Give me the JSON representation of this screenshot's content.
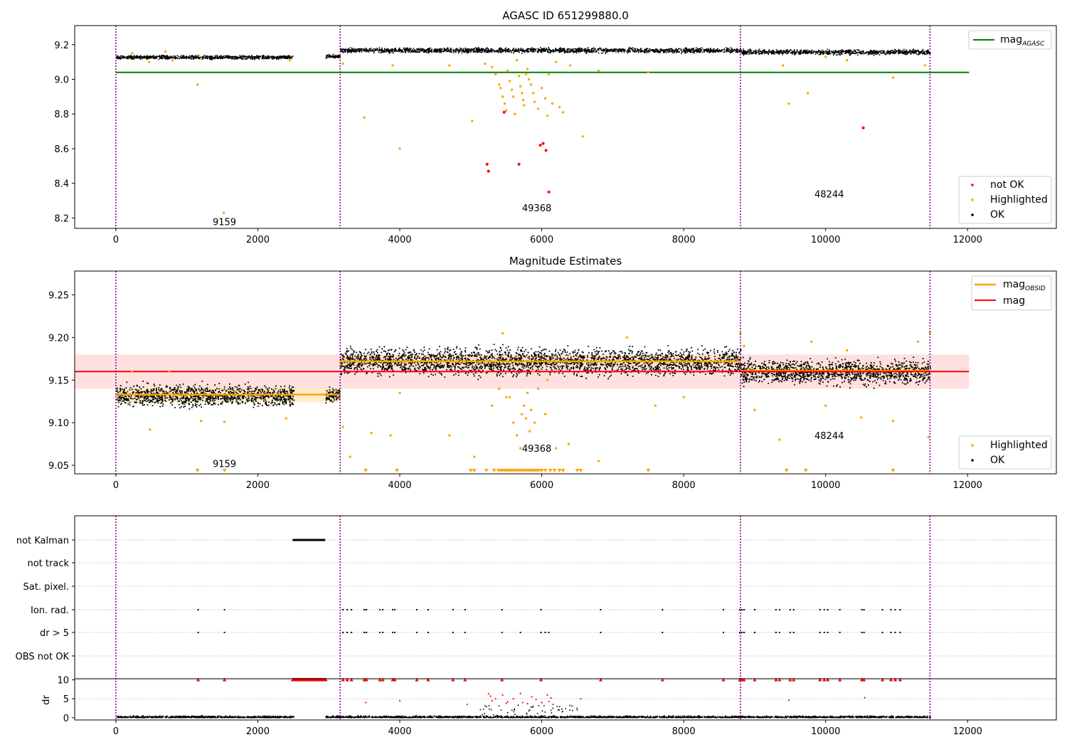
{
  "chart_data": [
    {
      "type": "scatter",
      "title": "AGASC ID 651299880.0",
      "xlim": [
        -580,
        13250
      ],
      "ylim": [
        8.14,
        9.31
      ],
      "xticks": [
        0,
        2000,
        4000,
        6000,
        8000,
        10000,
        12000
      ],
      "yticks": [
        8.2,
        8.4,
        8.6,
        8.8,
        9.0,
        9.2
      ],
      "vlines": [
        0,
        3160,
        8800,
        11470
      ],
      "obsid_labels": [
        {
          "text": "9159",
          "x": 1580,
          "y": 8.18
        },
        {
          "text": "49368",
          "x": 5980,
          "y": 8.26
        },
        {
          "text": "48244",
          "x": 10100,
          "y": 8.34
        }
      ],
      "hline": {
        "name": "mag",
        "subscript": "AGASC",
        "y": 9.04,
        "x0": 0,
        "x1": 12020,
        "color": "#008000"
      },
      "legend_lines": [
        {
          "name": "mag",
          "subscript": "AGASC",
          "color": "#008000"
        }
      ],
      "legend_points": [
        {
          "name": "not OK",
          "color": "#ff0000"
        },
        {
          "name": "Highlighted",
          "color": "#ffa500"
        },
        {
          "name": "OK",
          "color": "#000000"
        }
      ],
      "ok_bands": [
        {
          "x0": 0,
          "x1": 2500,
          "y0": 9.115,
          "y1": 9.145
        },
        {
          "x0": 2950,
          "x1": 3150,
          "y0": 9.12,
          "y1": 9.15
        },
        {
          "x0": 3160,
          "x1": 8800,
          "y0": 9.15,
          "y1": 9.19
        },
        {
          "x0": 8800,
          "x1": 11470,
          "y0": 9.14,
          "y1": 9.18
        }
      ],
      "highlighted": [
        [
          230,
          9.15
        ],
        [
          470,
          9.1
        ],
        [
          700,
          9.16
        ],
        [
          800,
          9.11
        ],
        [
          1150,
          8.97
        ],
        [
          1200,
          9.12
        ],
        [
          1520,
          8.23
        ],
        [
          2450,
          9.11
        ],
        [
          3200,
          9.09
        ],
        [
          3500,
          8.78
        ],
        [
          3900,
          9.08
        ],
        [
          4000,
          8.6
        ],
        [
          4700,
          9.08
        ],
        [
          5020,
          8.76
        ],
        [
          5200,
          9.09
        ],
        [
          5300,
          9.07
        ],
        [
          5350,
          9.03
        ],
        [
          5400,
          8.97
        ],
        [
          5420,
          8.95
        ],
        [
          5450,
          8.9
        ],
        [
          5480,
          8.86
        ],
        [
          5500,
          8.82
        ],
        [
          5520,
          9.05
        ],
        [
          5550,
          8.99
        ],
        [
          5580,
          8.94
        ],
        [
          5600,
          8.9
        ],
        [
          5620,
          8.8
        ],
        [
          5650,
          9.11
        ],
        [
          5680,
          9.02
        ],
        [
          5700,
          8.96
        ],
        [
          5720,
          8.92
        ],
        [
          5740,
          8.88
        ],
        [
          5750,
          8.85
        ],
        [
          5780,
          9.03
        ],
        [
          5800,
          9.06
        ],
        [
          5820,
          9.0
        ],
        [
          5850,
          8.97
        ],
        [
          5880,
          8.92
        ],
        [
          5900,
          8.87
        ],
        [
          5950,
          8.83
        ],
        [
          6000,
          8.95
        ],
        [
          6050,
          8.89
        ],
        [
          6080,
          8.79
        ],
        [
          6100,
          9.03
        ],
        [
          6150,
          8.86
        ],
        [
          6200,
          9.1
        ],
        [
          6250,
          8.84
        ],
        [
          6300,
          8.81
        ],
        [
          6400,
          9.08
        ],
        [
          6580,
          8.67
        ],
        [
          6800,
          9.05
        ],
        [
          7500,
          9.04
        ],
        [
          9400,
          9.08
        ],
        [
          9480,
          8.86
        ],
        [
          9750,
          8.92
        ],
        [
          10000,
          9.13
        ],
        [
          10300,
          9.11
        ],
        [
          10950,
          9.01
        ],
        [
          11400,
          9.08
        ]
      ],
      "not_ok": [
        [
          5470,
          8.81
        ],
        [
          5230,
          8.51
        ],
        [
          5250,
          8.47
        ],
        [
          5680,
          8.51
        ],
        [
          5980,
          8.62
        ],
        [
          6020,
          8.63
        ],
        [
          6060,
          8.59
        ],
        [
          6100,
          8.35
        ],
        [
          10530,
          8.72
        ]
      ]
    },
    {
      "type": "scatter",
      "title": "Magnitude Estimates",
      "xlim": [
        -580,
        13250
      ],
      "ylim": [
        9.04,
        9.278
      ],
      "xticks": [
        0,
        2000,
        4000,
        6000,
        8000,
        10000,
        12000
      ],
      "yticks": [
        9.05,
        9.1,
        9.15,
        9.2,
        9.25
      ],
      "vlines": [
        0,
        3160,
        8800,
        11470
      ],
      "obsid_labels": [
        {
          "text": "9159",
          "x": 1580,
          "y": 9.052
        },
        {
          "text": "49368",
          "x": 5980,
          "y": 9.07
        },
        {
          "text": "48244",
          "x": 10100,
          "y": 9.085
        }
      ],
      "mag": {
        "name": "mag",
        "y": 9.16,
        "band": [
          9.14,
          9.18
        ],
        "x0": -580,
        "x1": 12020,
        "color": "#ff0000"
      },
      "mag_obsid": [
        {
          "x0": 0,
          "x1": 3160,
          "y": 9.133,
          "band": [
            9.124,
            9.142
          ]
        },
        {
          "x0": 3160,
          "x1": 8800,
          "y": 9.172,
          "band": [
            9.166,
            9.178
          ]
        },
        {
          "x0": 8800,
          "x1": 11470,
          "y": 9.161,
          "band": [
            9.156,
            9.166
          ]
        }
      ],
      "legend_lines": [
        {
          "name": "mag",
          "subscript": "OBSID",
          "color": "#ffa500"
        },
        {
          "name": "mag",
          "subscript": "",
          "color": "#ff0000"
        }
      ],
      "legend_points": [
        {
          "name": "Highlighted",
          "color": "#ffa500"
        },
        {
          "name": "OK",
          "color": "#000000"
        }
      ],
      "ok_bands": [
        {
          "x0": 0,
          "x1": 2500,
          "y0": 9.115,
          "y1": 9.15
        },
        {
          "x0": 2950,
          "x1": 3150,
          "y0": 9.12,
          "y1": 9.145
        },
        {
          "x0": 3160,
          "x1": 8800,
          "y0": 9.15,
          "y1": 9.195
        },
        {
          "x0": 8800,
          "x1": 11470,
          "y0": 9.14,
          "y1": 9.18
        }
      ],
      "highlighted": [
        [
          230,
          9.16
        ],
        [
          480,
          9.092
        ],
        [
          750,
          9.16
        ],
        [
          1200,
          9.102
        ],
        [
          1530,
          9.101
        ],
        [
          2400,
          9.105
        ],
        [
          3200,
          9.095
        ],
        [
          3300,
          9.06
        ],
        [
          3600,
          9.088
        ],
        [
          3870,
          9.085
        ],
        [
          4000,
          9.135
        ],
        [
          4700,
          9.085
        ],
        [
          5050,
          9.06
        ],
        [
          5200,
          9.16
        ],
        [
          5300,
          9.12
        ],
        [
          5400,
          9.14
        ],
        [
          5450,
          9.205
        ],
        [
          5500,
          9.13
        ],
        [
          5550,
          9.13
        ],
        [
          5600,
          9.1
        ],
        [
          5650,
          9.085
        ],
        [
          5700,
          9.07
        ],
        [
          5720,
          9.11
        ],
        [
          5750,
          9.12
        ],
        [
          5780,
          9.105
        ],
        [
          5800,
          9.135
        ],
        [
          5830,
          9.09
        ],
        [
          5850,
          9.115
        ],
        [
          5880,
          9.16
        ],
        [
          5900,
          9.1
        ],
        [
          5950,
          9.14
        ],
        [
          6050,
          9.11
        ],
        [
          6080,
          9.15
        ],
        [
          6200,
          9.07
        ],
        [
          6380,
          9.075
        ],
        [
          6800,
          9.055
        ],
        [
          7200,
          9.2
        ],
        [
          7600,
          9.12
        ],
        [
          8000,
          9.13
        ],
        [
          8800,
          9.205
        ],
        [
          8850,
          9.19
        ],
        [
          9000,
          9.115
        ],
        [
          9350,
          9.08
        ],
        [
          9800,
          9.195
        ],
        [
          10000,
          9.12
        ],
        [
          10300,
          9.185
        ],
        [
          10500,
          9.106
        ],
        [
          10950,
          9.102
        ],
        [
          11300,
          9.195
        ],
        [
          11450,
          9.083
        ],
        [
          11470,
          9.206
        ]
      ],
      "lower_arrows": [
        1150,
        1530,
        3520,
        3960,
        5000,
        5050,
        5220,
        5330,
        5390,
        5420,
        5450,
        5480,
        5510,
        5540,
        5570,
        5600,
        5630,
        5660,
        5690,
        5720,
        5750,
        5780,
        5810,
        5840,
        5870,
        5900,
        5930,
        5960,
        6000,
        6050,
        6120,
        6180,
        6250,
        6300,
        6500,
        6550,
        7500,
        9450,
        9720,
        10950
      ]
    },
    {
      "type": "scatter",
      "title": "",
      "xlim": [
        -580,
        13250
      ],
      "xticks": [
        0,
        2000,
        4000,
        6000,
        8000,
        10000,
        12000
      ],
      "vlines": [
        0,
        3160,
        8800,
        11470
      ],
      "flag_rows": [
        "not Kalman",
        "not track",
        "Sat. pixel.",
        "Ion. rad.",
        "dr > 5",
        "OBS not OK"
      ],
      "flag_ranges": [
        {
          "row": "not Kalman",
          "x0": 2490,
          "x1": 2950
        }
      ],
      "flag_points": {
        "Ion. rad.": [
          1160,
          1530,
          3200,
          3260,
          3320,
          3500,
          3530,
          3720,
          3760,
          3900,
          3930,
          4240,
          4400,
          4750,
          4920,
          5440,
          5990,
          6830,
          7700,
          8560,
          8790,
          8820,
          8850,
          9000,
          9300,
          9350,
          9500,
          9550,
          9920,
          9980,
          10030,
          10200,
          10510,
          10540,
          10800,
          10920,
          10980,
          11050
        ],
        "dr > 5": [
          1160,
          1530,
          3200,
          3260,
          3320,
          3500,
          3530,
          3720,
          3760,
          3900,
          3930,
          4240,
          4400,
          4750,
          4920,
          5440,
          5700,
          5990,
          6050,
          6100,
          6830,
          7700,
          8560,
          8790,
          8820,
          8850,
          9000,
          9300,
          9350,
          9500,
          9550,
          9920,
          9980,
          10030,
          10200,
          10510,
          10540,
          10800,
          10920,
          10980,
          11050
        ]
      },
      "dr": {
        "ylabel": "dr",
        "yticks": [
          0,
          5,
          10
        ],
        "ylim": [
          -0.6,
          10.3
        ],
        "baseline_ranges": [
          [
            0,
            2500
          ],
          [
            2950,
            11470
          ]
        ],
        "clipped_range": [
          2490,
          2960
        ],
        "clipped_points": [
          1160,
          1530,
          3200,
          3260,
          3320,
          3500,
          3530,
          3720,
          3760,
          3900,
          3930,
          4240,
          4400,
          4750,
          4920,
          5440,
          5990,
          6830,
          7700,
          8560,
          8790,
          8820,
          8850,
          9000,
          9300,
          9350,
          9500,
          9550,
          9920,
          9980,
          10030,
          10200,
          10510,
          10540,
          10800,
          10920,
          10980,
          11050
        ],
        "red_points": [
          [
            3520,
            4.0
          ],
          [
            4000,
            4.5
          ],
          [
            4950,
            3.5
          ],
          [
            5250,
            6.3
          ],
          [
            5280,
            5.7
          ],
          [
            5300,
            4.5
          ],
          [
            5350,
            5.0
          ],
          [
            5450,
            6.0
          ],
          [
            5500,
            3.8
          ],
          [
            5520,
            4.2
          ],
          [
            5600,
            5.0
          ],
          [
            5700,
            6.4
          ],
          [
            5730,
            4.0
          ],
          [
            5800,
            3.7
          ],
          [
            5860,
            5.5
          ],
          [
            5880,
            3.0
          ],
          [
            5920,
            4.8
          ],
          [
            6000,
            4.0
          ],
          [
            6080,
            6.0
          ],
          [
            6100,
            4.3
          ],
          [
            6130,
            5.2
          ],
          [
            6160,
            3.5
          ],
          [
            6550,
            5.0
          ],
          [
            9480,
            4.6
          ],
          [
            10550,
            5.3
          ]
        ],
        "dark_scatter_range": [
          5100,
          6500
        ]
      }
    }
  ]
}
